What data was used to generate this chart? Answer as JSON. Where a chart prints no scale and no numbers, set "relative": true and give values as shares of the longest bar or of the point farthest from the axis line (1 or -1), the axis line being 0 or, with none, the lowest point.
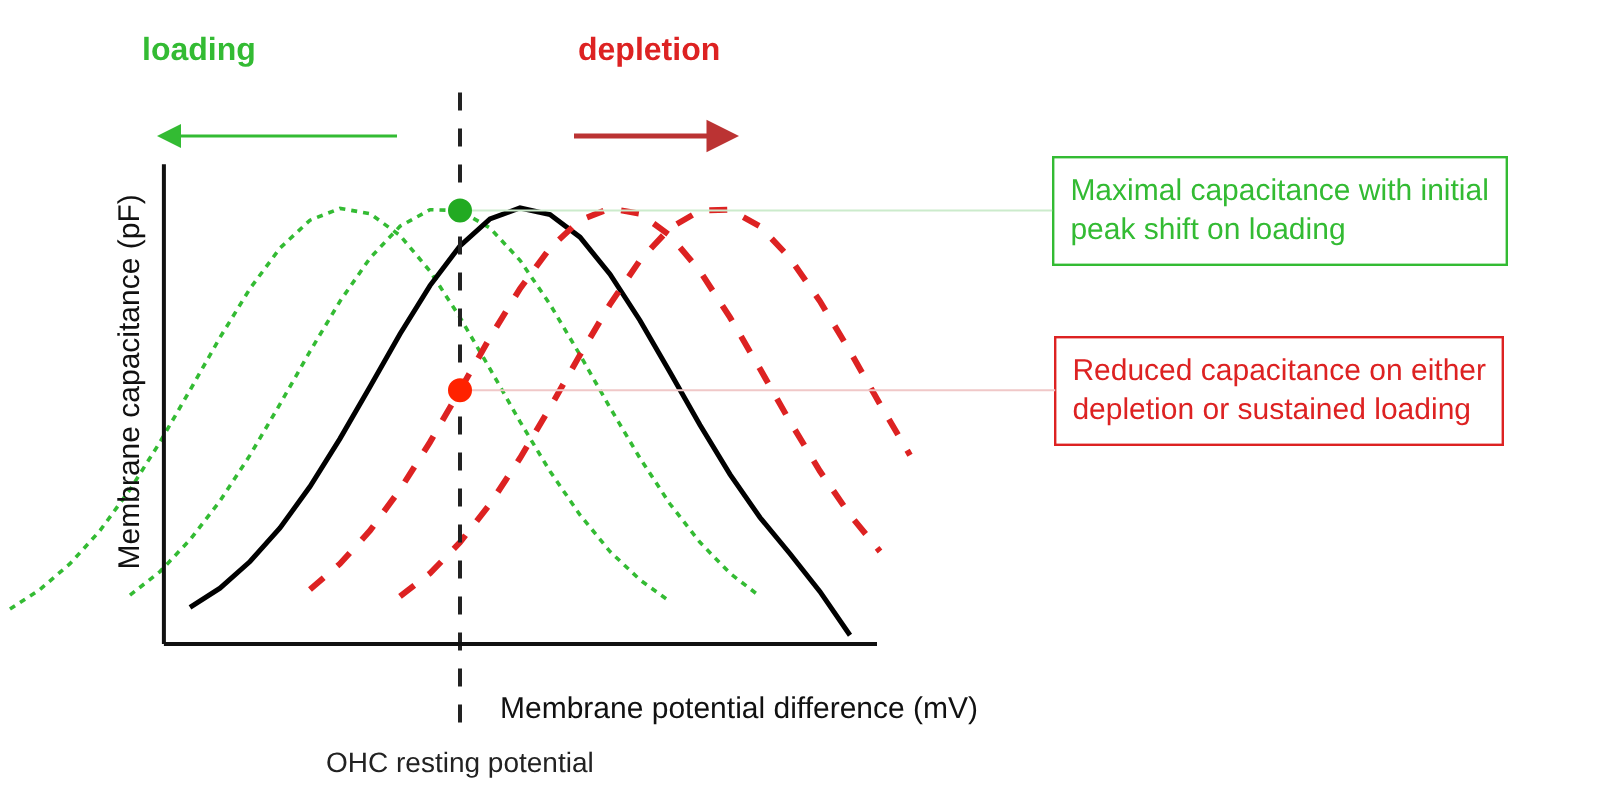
{
  "chart_data": {
    "type": "line",
    "relative": true,
    "legend": false,
    "xlabel": "Membrane potential difference (mV)",
    "ylabel": "Membrane capacitance (pF)",
    "categories": [
      null,
      null,
      null,
      null,
      null,
      null,
      null,
      null,
      null,
      null,
      null,
      null,
      null,
      null,
      null,
      null,
      null,
      null,
      null,
      null,
      null,
      null,
      null,
      null,
      null,
      null,
      null,
      null,
      null,
      null,
      null,
      null
    ],
    "annotations": [
      "loading",
      "depletion",
      "OHC resting potential",
      "Maximal capacitance with initial\npeak shift on loading",
      "Reduced capacitance on either\ndepletion or sustained loading"
    ],
    "series": [
      {
        "color": "#33bb33",
        "line_style": "dotted",
        "values": [
          0.08,
          0.125,
          0.184,
          0.26,
          0.354,
          0.463,
          0.582,
          0.703,
          0.815,
          0.908,
          0.972,
          0.999,
          0.987,
          0.937,
          0.855,
          0.749,
          0.631,
          0.51,
          0.396,
          0.296,
          0.212,
          0.147,
          0.097,
          null,
          null,
          null,
          null,
          null,
          null,
          null,
          null,
          null
        ]
      },
      {
        "color": "#33bb33",
        "line_style": "dotted",
        "values": [
          null,
          null,
          null,
          null,
          0.112,
          0.166,
          0.239,
          0.328,
          0.433,
          0.55,
          0.671,
          0.786,
          0.885,
          0.958,
          0.996,
          0.994,
          0.954,
          0.88,
          0.779,
          0.663,
          0.542,
          0.426,
          0.321,
          0.233,
          0.162,
          0.109,
          null,
          null,
          null,
          null,
          null,
          null
        ]
      },
      {
        "color": "#000000",
        "line_style": "solid",
        "values": [
          null,
          null,
          null,
          null,
          null,
          null,
          0.084,
          0.128,
          0.189,
          0.266,
          0.361,
          0.471,
          0.59,
          0.711,
          0.822,
          0.913,
          0.975,
          1.0,
          0.985,
          0.933,
          0.848,
          0.742,
          0.623,
          0.502,
          0.389,
          0.29,
          0.207,
          0.12,
          0.02,
          null,
          null,
          null
        ]
      },
      {
        "color": "#dd2222",
        "line_style": "dashed",
        "values": [
          null,
          null,
          null,
          null,
          null,
          null,
          null,
          null,
          null,
          null,
          0.125,
          0.184,
          0.26,
          0.354,
          0.463,
          0.582,
          0.703,
          0.815,
          0.908,
          0.972,
          0.999,
          0.987,
          0.937,
          0.855,
          0.749,
          0.631,
          0.51,
          0.396,
          0.296,
          0.212,
          null,
          null
        ]
      },
      {
        "color": "#dd2222",
        "line_style": "dashed",
        "values": [
          null,
          null,
          null,
          null,
          null,
          null,
          null,
          null,
          null,
          null,
          null,
          null,
          null,
          0.109,
          0.162,
          0.233,
          0.321,
          0.426,
          0.542,
          0.663,
          0.779,
          0.88,
          0.954,
          0.994,
          0.996,
          0.958,
          0.885,
          0.786,
          0.671,
          0.55,
          0.433,
          null
        ]
      }
    ]
  }
}
